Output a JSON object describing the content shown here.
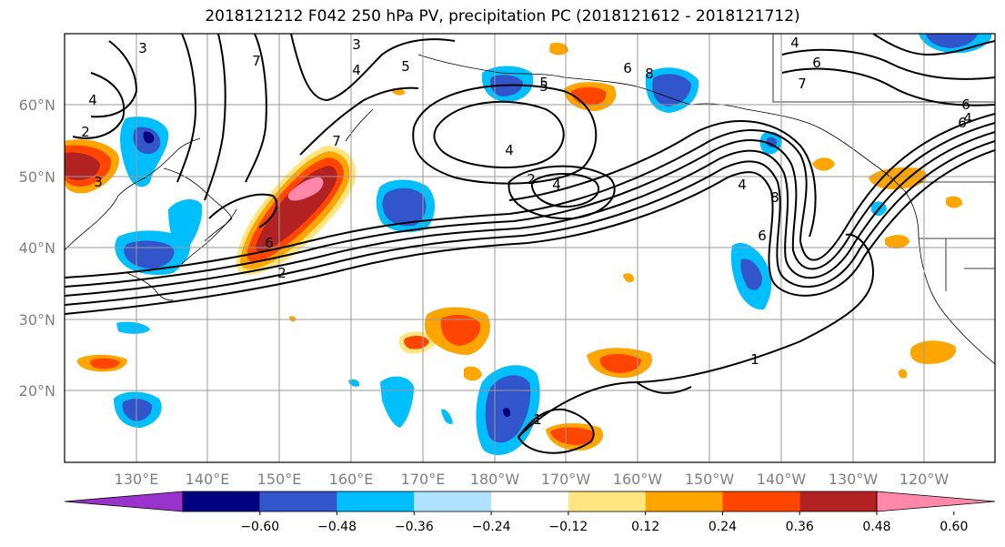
{
  "title": "2018121212 F042 250 hPa PV, precipitation PC (2018121612 - 2018121712)",
  "lat_labels": [
    "60°N",
    "50°N",
    "40°N",
    "30°N",
    "20°N"
  ],
  "lon_labels": [
    "130°E",
    "140°E",
    "150°E",
    "160°E",
    "170°E",
    "180°W",
    "170°W",
    "160°W",
    "150°W",
    "140°W",
    "130°W",
    "120°W"
  ],
  "colorbar": {
    "colors": [
      "#9933cc",
      "#000080",
      "#3355cc",
      "#00bfff",
      "#b0e2ff",
      "#ffffff",
      "#ffe680",
      "#ffa500",
      "#ff4500",
      "#b22222",
      "#ff88aa"
    ],
    "tick_labels": [
      "−0.60",
      "−0.48",
      "−0.36",
      "−0.24",
      "−0.12",
      "0.12",
      "0.24",
      "0.36",
      "0.48",
      "0.60"
    ]
  },
  "pv_contour_labels": [
    "3",
    "7",
    "3",
    "4",
    "5",
    "4",
    "2",
    "3",
    "7",
    "4",
    "5",
    "6",
    "4",
    "8",
    "6",
    "4",
    "6",
    "6",
    "7",
    "5",
    "4",
    "6",
    "2",
    "1",
    "8",
    "6",
    "4",
    "1",
    "2"
  ]
}
